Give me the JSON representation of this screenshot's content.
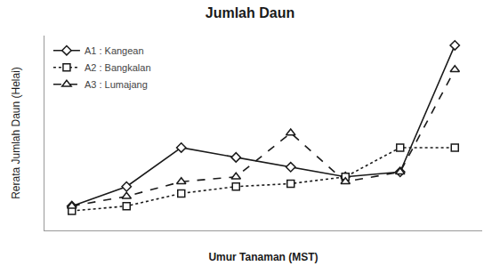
{
  "chart_data": {
    "type": "line",
    "title": "Jumlah Daun",
    "x_label": "Umur Tanaman (MST)",
    "y_label": "Rerata Jumlah Daun (Helai)",
    "x": [
      1,
      2,
      3,
      4,
      5,
      6,
      7,
      8
    ],
    "series": [
      {
        "name": "A1 : Kangean",
        "color": "#1a1a1a",
        "marker": "diamond",
        "line_style": "solid",
        "values": [
          2.5,
          4.5,
          8.5,
          7.5,
          6.5,
          5.5,
          6.0,
          19.0
        ]
      },
      {
        "name": "A2 : Bangkalan",
        "color": "#1a1a1a",
        "marker": "square",
        "line_style": "dot",
        "values": [
          2.0,
          2.5,
          3.8,
          4.5,
          4.8,
          5.5,
          8.5,
          8.5
        ]
      },
      {
        "name": "A3 : Lumajang",
        "color": "#1a1a1a",
        "marker": "triangle-up",
        "line_style": "dash",
        "values": [
          2.5,
          3.5,
          5.0,
          5.5,
          10.0,
          5.0,
          6.0,
          16.5
        ]
      }
    ],
    "xlim": [
      0.5,
      8.5
    ],
    "ylim": [
      0,
      20
    ],
    "tick_labels": false,
    "grid": false,
    "legend": "upper left"
  }
}
